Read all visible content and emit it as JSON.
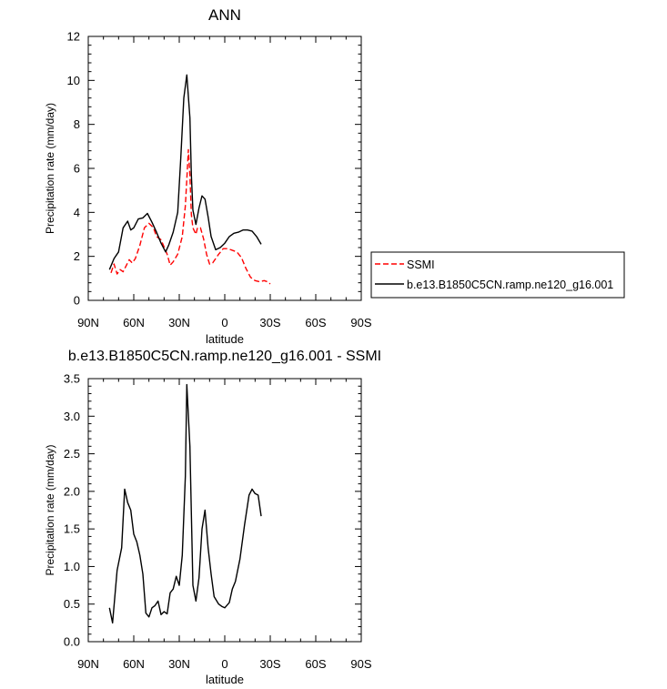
{
  "chart_data": [
    {
      "type": "line",
      "title": "ANN",
      "xlabel": "latitude",
      "ylabel": "Precipitation rate (mm/day)",
      "xlim": [
        90,
        -90
      ],
      "ylim": [
        0,
        12
      ],
      "xticks": [
        {
          "value": 90,
          "label": "90N"
        },
        {
          "value": 60,
          "label": "60N"
        },
        {
          "value": 30,
          "label": "30N"
        },
        {
          "value": 0,
          "label": "0"
        },
        {
          "value": -30,
          "label": "30S"
        },
        {
          "value": -60,
          "label": "60S"
        },
        {
          "value": -90,
          "label": "90S"
        }
      ],
      "yticks": [
        {
          "value": 0,
          "label": "0"
        },
        {
          "value": 2,
          "label": "2"
        },
        {
          "value": 4,
          "label": "4"
        },
        {
          "value": 6,
          "label": "6"
        },
        {
          "value": 8,
          "label": "8"
        },
        {
          "value": 10,
          "label": "10"
        },
        {
          "value": 12,
          "label": "12"
        }
      ],
      "legend_position": "outside-right",
      "series": [
        {
          "name": "SSMI",
          "color": "#ff0000",
          "dash": true,
          "points": [
            [
              75,
              1.25
            ],
            [
              73,
              1.65
            ],
            [
              71,
              1.2
            ],
            [
              69,
              1.4
            ],
            [
              67,
              1.3
            ],
            [
              63,
              1.85
            ],
            [
              61,
              1.7
            ],
            [
              59,
              1.9
            ],
            [
              56,
              2.5
            ],
            [
              53,
              3.3
            ],
            [
              50,
              3.5
            ],
            [
              47,
              3.3
            ],
            [
              45,
              2.9
            ],
            [
              42,
              2.75
            ],
            [
              38,
              2.1
            ],
            [
              36,
              1.6
            ],
            [
              34,
              1.75
            ],
            [
              31,
              2.1
            ],
            [
              28,
              2.9
            ],
            [
              26,
              4.3
            ],
            [
              25,
              5.5
            ],
            [
              24,
              6.85
            ],
            [
              23,
              5.7
            ],
            [
              22,
              3.9
            ],
            [
              21,
              3.3
            ],
            [
              19,
              3.0
            ],
            [
              18,
              3.3
            ],
            [
              16,
              3.3
            ],
            [
              14,
              2.8
            ],
            [
              12,
              2.1
            ],
            [
              10,
              1.65
            ],
            [
              8,
              1.7
            ],
            [
              4,
              2.1
            ],
            [
              1,
              2.35
            ],
            [
              -2,
              2.35
            ],
            [
              -8,
              2.2
            ],
            [
              -11,
              1.95
            ],
            [
              -14,
              1.45
            ],
            [
              -17,
              1.05
            ],
            [
              -20,
              0.9
            ],
            [
              -23,
              0.85
            ],
            [
              -26,
              0.9
            ],
            [
              -28,
              0.85
            ],
            [
              -30,
              0.75
            ]
          ]
        },
        {
          "name": "b.e13.B1850C5CN.ramp.ne120_g16.001",
          "color": "#000000",
          "dash": false,
          "points": [
            [
              76,
              1.4
            ],
            [
              73,
              1.9
            ],
            [
              70,
              2.2
            ],
            [
              67,
              3.3
            ],
            [
              64,
              3.6
            ],
            [
              62,
              3.2
            ],
            [
              60,
              3.3
            ],
            [
              57,
              3.7
            ],
            [
              54,
              3.75
            ],
            [
              51,
              3.95
            ],
            [
              48,
              3.55
            ],
            [
              45,
              3.1
            ],
            [
              42,
              2.6
            ],
            [
              39,
              2.2
            ],
            [
              37,
              2.5
            ],
            [
              34,
              3.1
            ],
            [
              31,
              4.0
            ],
            [
              29,
              6.5
            ],
            [
              27,
              9.2
            ],
            [
              25,
              10.25
            ],
            [
              23,
              8.3
            ],
            [
              22,
              5.7
            ],
            [
              21,
              4.1
            ],
            [
              19,
              3.45
            ],
            [
              17,
              4.2
            ],
            [
              15,
              4.75
            ],
            [
              13,
              4.6
            ],
            [
              11,
              3.8
            ],
            [
              9,
              2.9
            ],
            [
              6,
              2.3
            ],
            [
              3,
              2.4
            ],
            [
              0,
              2.6
            ],
            [
              -3,
              2.9
            ],
            [
              -6,
              3.05
            ],
            [
              -9,
              3.1
            ],
            [
              -12,
              3.2
            ],
            [
              -15,
              3.2
            ],
            [
              -18,
              3.15
            ],
            [
              -21,
              2.9
            ],
            [
              -24,
              2.55
            ]
          ]
        }
      ]
    },
    {
      "type": "line",
      "title": "b.e13.B1850C5CN.ramp.ne120_g16.001 - SSMI",
      "xlabel": "latitude",
      "ylabel": "Precipitation rate (mm/day)",
      "xlim": [
        90,
        -90
      ],
      "ylim": [
        0,
        3.5
      ],
      "xticks": [
        {
          "value": 90,
          "label": "90N"
        },
        {
          "value": 60,
          "label": "60N"
        },
        {
          "value": 30,
          "label": "30N"
        },
        {
          "value": 0,
          "label": "0"
        },
        {
          "value": -30,
          "label": "30S"
        },
        {
          "value": -60,
          "label": "60S"
        },
        {
          "value": -90,
          "label": "90S"
        }
      ],
      "yticks": [
        {
          "value": 0,
          "label": "0.0"
        },
        {
          "value": 0.5,
          "label": "0.5"
        },
        {
          "value": 1.0,
          "label": "1.0"
        },
        {
          "value": 1.5,
          "label": "1.5"
        },
        {
          "value": 2.0,
          "label": "2.0"
        },
        {
          "value": 2.5,
          "label": "2.5"
        },
        {
          "value": 3.0,
          "label": "3.0"
        },
        {
          "value": 3.5,
          "label": "3.5"
        }
      ],
      "series": [
        {
          "color": "#000000",
          "dash": false,
          "points": [
            [
              76,
              0.45
            ],
            [
              74,
              0.25
            ],
            [
              71,
              0.95
            ],
            [
              68,
              1.25
            ],
            [
              66,
              2.03
            ],
            [
              64,
              1.85
            ],
            [
              62,
              1.75
            ],
            [
              60,
              1.43
            ],
            [
              58,
              1.33
            ],
            [
              56,
              1.15
            ],
            [
              54,
              0.9
            ],
            [
              52,
              0.38
            ],
            [
              50,
              0.33
            ],
            [
              48,
              0.45
            ],
            [
              46,
              0.48
            ],
            [
              44,
              0.54
            ],
            [
              42,
              0.36
            ],
            [
              40,
              0.4
            ],
            [
              38,
              0.37
            ],
            [
              36,
              0.65
            ],
            [
              34,
              0.7
            ],
            [
              32,
              0.87
            ],
            [
              30,
              0.75
            ],
            [
              28,
              1.15
            ],
            [
              26,
              2.2
            ],
            [
              25,
              3.42
            ],
            [
              23,
              2.6
            ],
            [
              21,
              0.75
            ],
            [
              19,
              0.54
            ],
            [
              17,
              0.85
            ],
            [
              15,
              1.5
            ],
            [
              13,
              1.75
            ],
            [
              11,
              1.25
            ],
            [
              9,
              0.9
            ],
            [
              7,
              0.6
            ],
            [
              4,
              0.5
            ],
            [
              2,
              0.47
            ],
            [
              0,
              0.45
            ],
            [
              -3,
              0.52
            ],
            [
              -5,
              0.7
            ],
            [
              -7,
              0.8
            ],
            [
              -10,
              1.1
            ],
            [
              -13,
              1.55
            ],
            [
              -16,
              1.95
            ],
            [
              -18,
              2.03
            ],
            [
              -20,
              1.97
            ],
            [
              -22,
              1.95
            ],
            [
              -24,
              1.67
            ]
          ]
        }
      ]
    }
  ]
}
